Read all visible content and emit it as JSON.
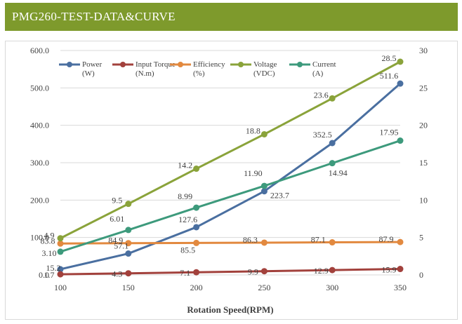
{
  "banner": {
    "title": "PMG260-TEST-DATA&CURVE"
  },
  "chart_data": {
    "type": "line",
    "xlabel": "Rotation Speed(RPM)",
    "x": [
      100,
      150,
      200,
      250,
      300,
      350
    ],
    "ylim": [
      0,
      600
    ],
    "y_ticks": [
      "0.0",
      "100.0",
      "200.0",
      "300.0",
      "400.0",
      "500.0",
      "600.0"
    ],
    "y2lim": [
      0,
      30
    ],
    "y2_ticks": [
      "0",
      "5",
      "10",
      "15",
      "20",
      "25",
      "30"
    ],
    "grid": true,
    "legend_position": "top-left",
    "series": [
      {
        "name": "Power",
        "unit": "(W)",
        "axis": "left",
        "color": "#4a6fa0",
        "values": [
          15.2,
          57.1,
          127.6,
          223.7,
          352.5,
          511.6
        ],
        "labels": [
          "15.2",
          "57.1",
          "127.6",
          "223.7",
          "352.5",
          "511.6"
        ]
      },
      {
        "name": "Input Torque",
        "unit": "(N.m)",
        "axis": "right",
        "color": "#a2413c",
        "values": [
          0.085,
          0.215,
          0.355,
          0.495,
          0.645,
          0.795
        ],
        "labels": [
          "1.7",
          "4.3",
          "7.1",
          "9.9",
          "12.9",
          "15.9"
        ]
      },
      {
        "name": "Efficiency",
        "unit": "(%)",
        "axis": "right",
        "color": "#e2893f",
        "values": [
          4.19,
          4.245,
          4.275,
          4.315,
          4.355,
          4.395
        ],
        "labels": [
          "83.8",
          "84.9",
          "85.5",
          "86.3",
          "87.1",
          "87.9"
        ]
      },
      {
        "name": "Voltage",
        "unit": "(VDC)",
        "axis": "left",
        "color": "#8aa33a",
        "values": [
          98,
          190,
          284,
          376,
          472,
          570
        ],
        "labels": [
          "4.9",
          "9.5",
          "14.2",
          "18.8",
          "23.6",
          "28.5"
        ]
      },
      {
        "name": "Current",
        "unit": "(A)",
        "axis": "right",
        "color": "#3d9a7c",
        "values": [
          3.1,
          6.01,
          8.99,
          11.9,
          14.94,
          17.95
        ],
        "labels": [
          "3.10",
          "6.01",
          "8.99",
          "11.90",
          "14.94",
          "17.95"
        ]
      }
    ]
  }
}
